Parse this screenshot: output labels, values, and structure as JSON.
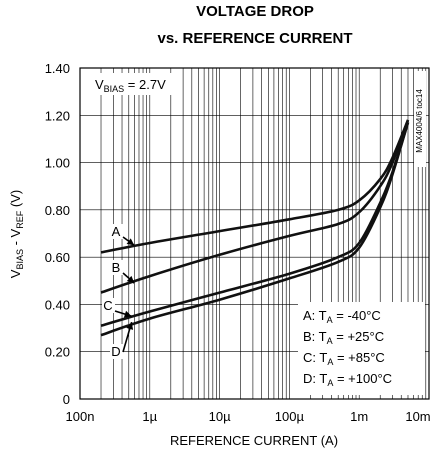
{
  "chart_data": {
    "type": "line",
    "title_lines": [
      "VOLTAGE DROP",
      "vs. REFERENCE CURRENT"
    ],
    "xlabel": "REFERENCE CURRENT (A)",
    "ylabel": "V_BIAS - V_REF (V)",
    "x_scale": "log",
    "xlim": [
      1e-07,
      0.01
    ],
    "ylim": [
      0,
      1.4
    ],
    "x_ticks": [
      {
        "value": 1e-07,
        "label": "100n"
      },
      {
        "value": 1e-06,
        "label": "1µ"
      },
      {
        "value": 1e-05,
        "label": "10µ"
      },
      {
        "value": 0.0001,
        "label": "100µ"
      },
      {
        "value": 0.001,
        "label": "1m"
      },
      {
        "value": 0.01,
        "label": "10m"
      }
    ],
    "y_ticks": [
      {
        "value": 0,
        "label": "0"
      },
      {
        "value": 0.2,
        "label": "0.20"
      },
      {
        "value": 0.4,
        "label": "0.40"
      },
      {
        "value": 0.6,
        "label": "0.60"
      },
      {
        "value": 0.8,
        "label": "0.80"
      },
      {
        "value": 1.0,
        "label": "1.00"
      },
      {
        "value": 1.2,
        "label": "1.20"
      },
      {
        "value": 1.4,
        "label": "1.40"
      }
    ],
    "grid": true,
    "condition": "V_BIAS = 2.7V",
    "part_label": "MAX4004/6 toc14",
    "series": [
      {
        "name": "A",
        "x": [
          2e-07,
          1e-06,
          1e-05,
          0.0001,
          0.0005,
          0.001,
          0.002,
          0.003,
          0.005
        ],
        "y": [
          0.62,
          0.66,
          0.71,
          0.76,
          0.8,
          0.84,
          0.93,
          1.02,
          1.18
        ]
      },
      {
        "name": "B",
        "x": [
          2e-07,
          1e-06,
          1e-05,
          0.0001,
          0.0005,
          0.001,
          0.002,
          0.003,
          0.005
        ],
        "y": [
          0.45,
          0.52,
          0.61,
          0.69,
          0.74,
          0.79,
          0.9,
          1.0,
          1.18
        ]
      },
      {
        "name": "C",
        "x": [
          2e-07,
          1e-06,
          1e-05,
          0.0001,
          0.0005,
          0.001,
          0.002,
          0.003,
          0.005
        ],
        "y": [
          0.31,
          0.37,
          0.45,
          0.53,
          0.6,
          0.66,
          0.83,
          0.96,
          1.17
        ]
      },
      {
        "name": "D",
        "x": [
          2e-07,
          1e-06,
          1e-05,
          0.0001,
          0.0005,
          0.001,
          0.002,
          0.003,
          0.005
        ],
        "y": [
          0.27,
          0.34,
          0.42,
          0.51,
          0.58,
          0.64,
          0.81,
          0.95,
          1.17
        ]
      }
    ],
    "legend": [
      {
        "key": "A",
        "sub": "A",
        "text": " = -40°C"
      },
      {
        "key": "B",
        "sub": "A",
        "text": " = +25°C"
      },
      {
        "key": "C",
        "sub": "A",
        "text": " = +85°C"
      },
      {
        "key": "D",
        "sub": "A",
        "text": " = +100°C"
      }
    ],
    "curve_labels": [
      {
        "label": "A",
        "x": 6e-07,
        "y": 0.65
      },
      {
        "label": "B",
        "x": 6e-07,
        "y": 0.49
      },
      {
        "label": "C",
        "x": 5.5e-07,
        "y": 0.35
      },
      {
        "label": "D",
        "x": 5.5e-07,
        "y": 0.325
      }
    ]
  }
}
